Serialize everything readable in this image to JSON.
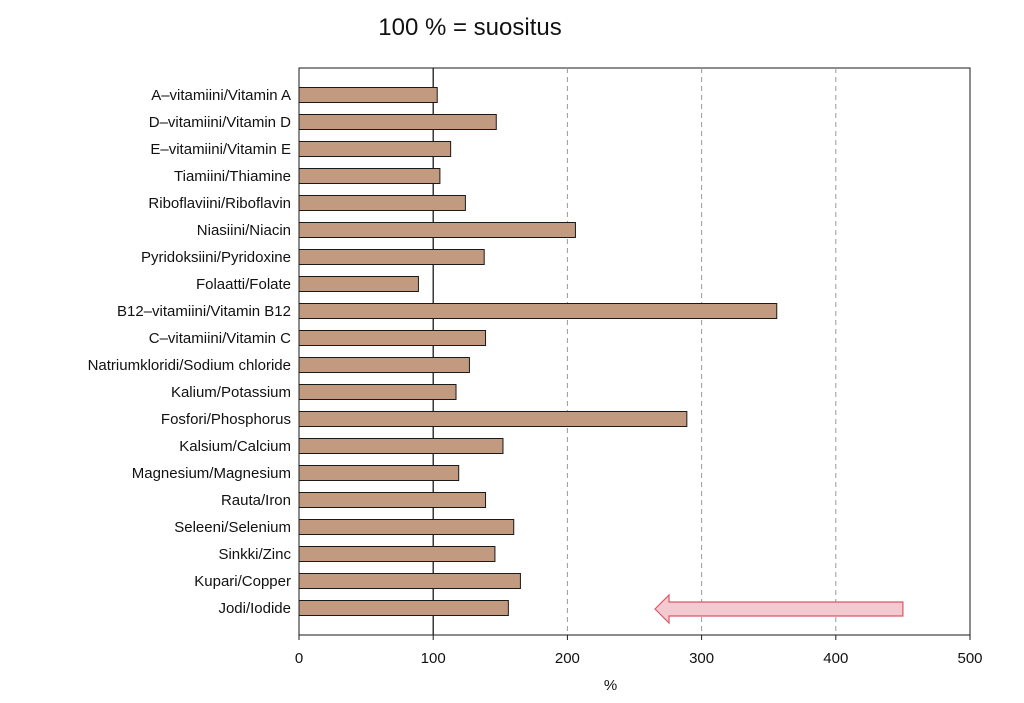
{
  "chart_data": {
    "type": "bar",
    "orientation": "horizontal",
    "title": "100 % = suositus",
    "xlabel": "%",
    "ylabel": "",
    "xlim": [
      0,
      500
    ],
    "xticks": [
      0,
      100,
      200,
      300,
      400,
      500
    ],
    "reference_line": 100,
    "grid": "dashed vertical lines at 200, 300, 400",
    "categories": [
      "A–vitamiini/Vitamin A",
      "D–vitamiini/Vitamin D",
      "E–vitamiini/Vitamin E",
      "Tiamiini/Thiamine",
      "Riboflaviini/Riboflavin",
      "Niasiini/Niacin",
      "Pyridoksiini/Pyridoxine",
      "Folaatti/Folate",
      "B12–vitamiini/Vitamin B12",
      "C–vitamiini/Vitamin C",
      "Natriumkloridi/Sodium chloride",
      "Kalium/Potassium",
      "Fosfori/Phosphorus",
      "Kalsium/Calcium",
      "Magnesium/Magnesium",
      "Rauta/Iron",
      "Seleeni/Selenium",
      "Sinkki/Zinc",
      "Kupari/Copper",
      "Jodi/Iodide"
    ],
    "values": [
      103,
      147,
      113,
      105,
      124,
      206,
      138,
      89,
      356,
      139,
      127,
      117,
      289,
      152,
      119,
      139,
      160,
      146,
      165,
      156
    ],
    "annotation": {
      "type": "arrow",
      "direction": "left",
      "from_x": 450,
      "to_x": 272,
      "category": "Jodi/Iodide"
    },
    "colors": {
      "bar": "#c19a80",
      "bar_edge": "#1a1a1a",
      "grid": "#999999",
      "arrow_fill": "#f4c9cf",
      "arrow_edge": "#d85a6a"
    }
  }
}
